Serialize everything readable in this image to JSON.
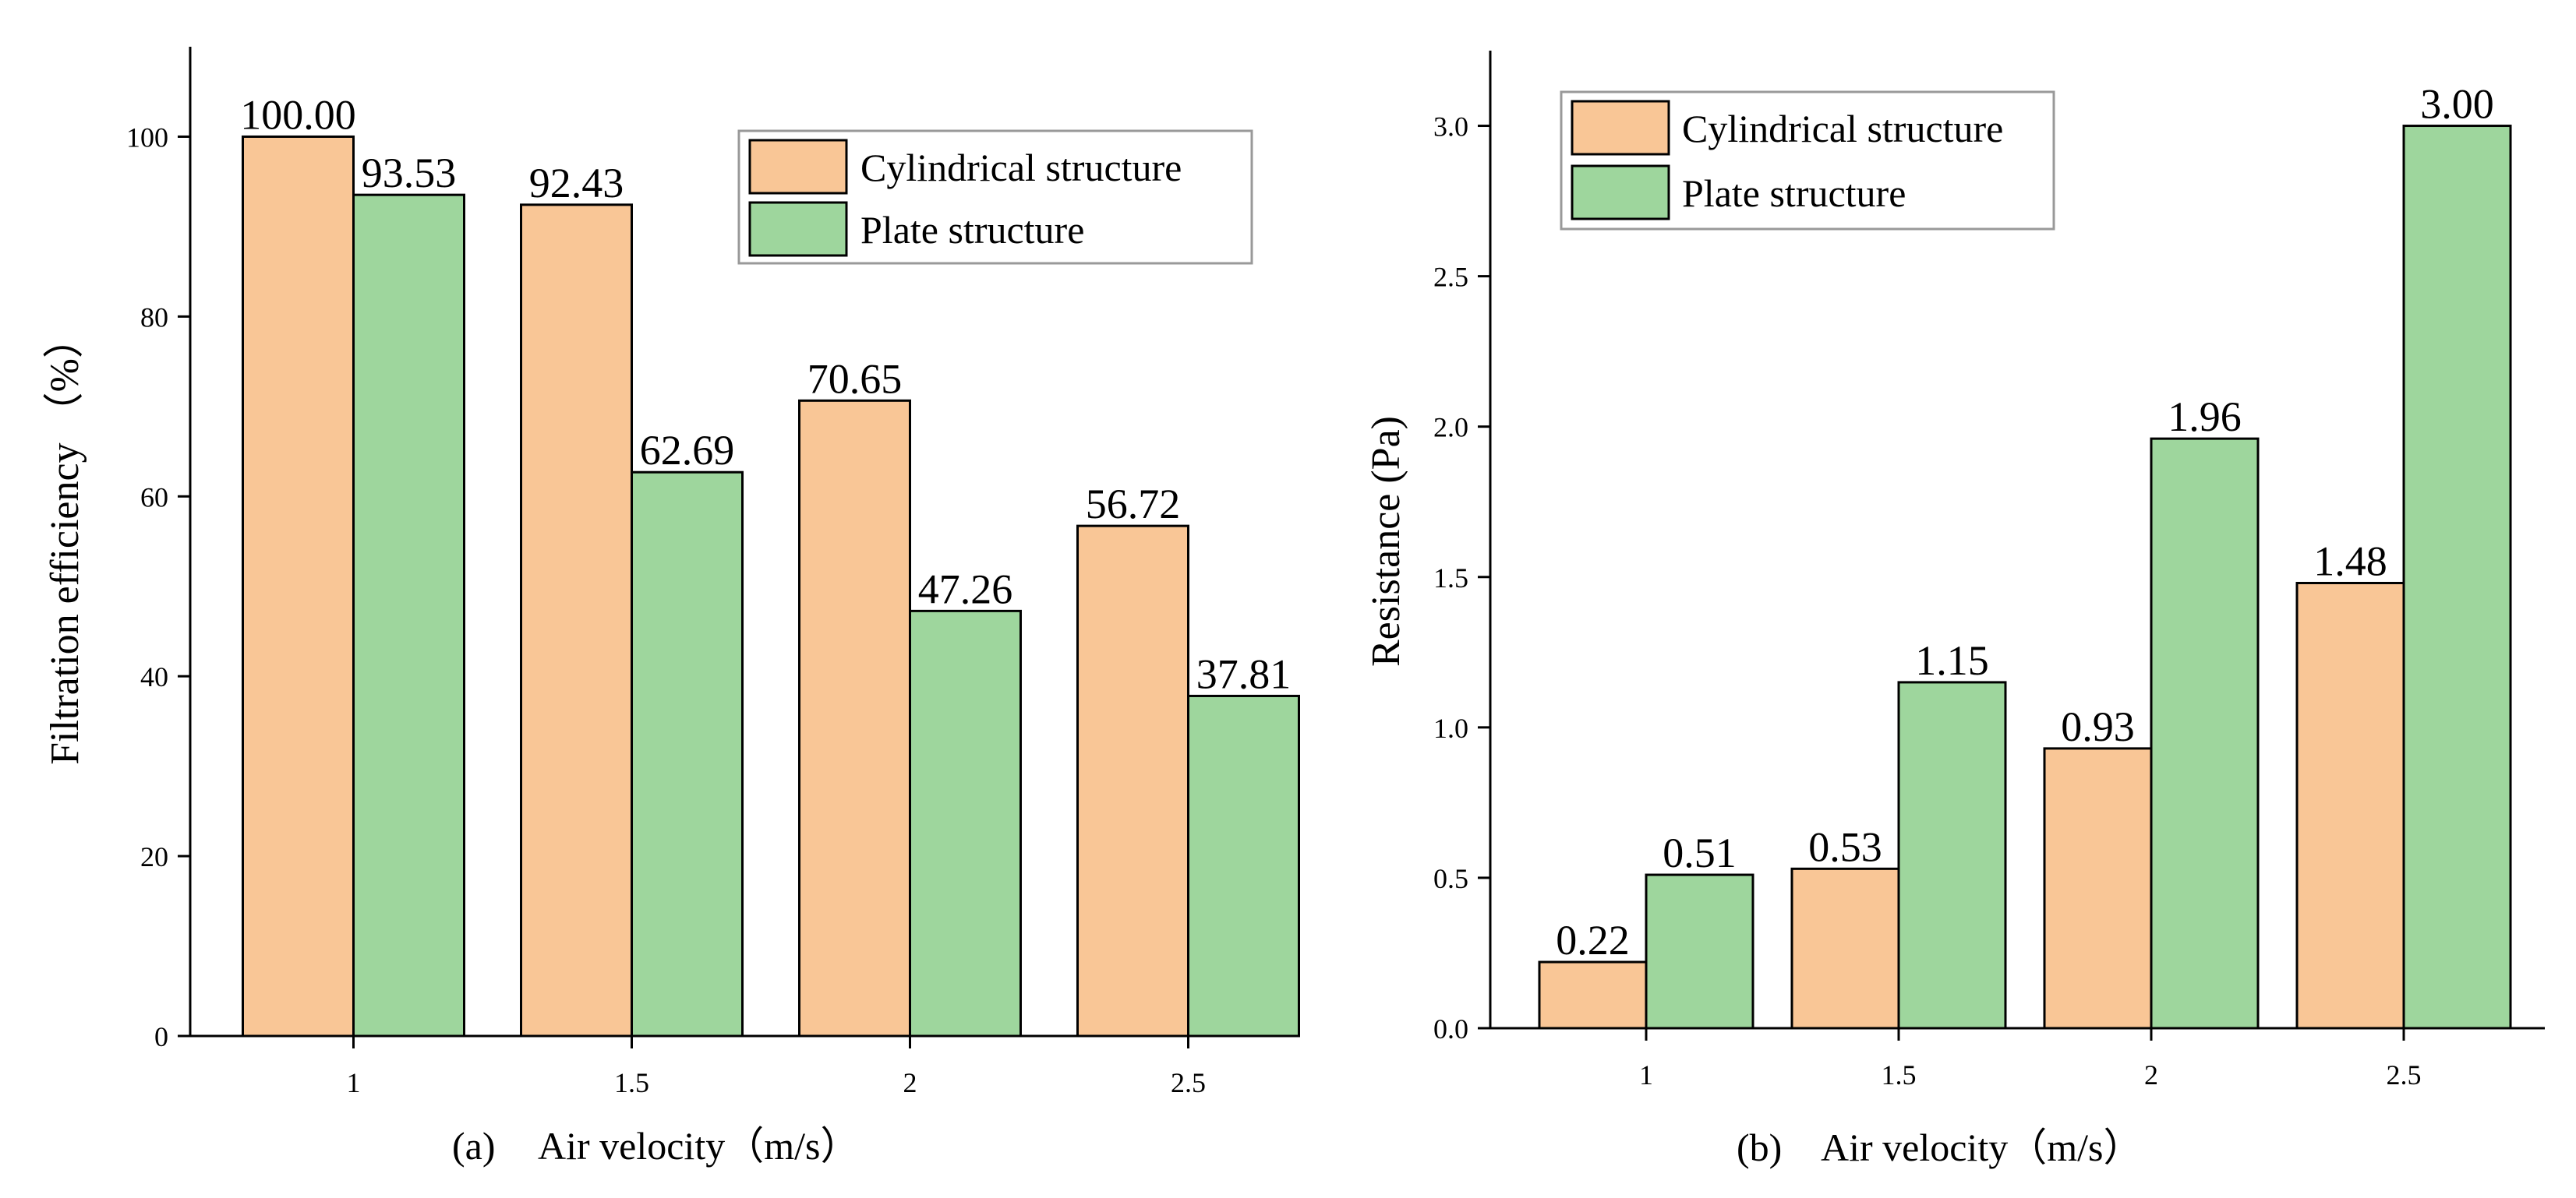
{
  "colors": {
    "cylindrical": "#F9C696",
    "plate": "#9ED69D"
  },
  "chart_data": [
    {
      "type": "bar",
      "caption": "(a)",
      "xlabel": "Air velocity（m/s）",
      "ylabel": "Filtration efficiency （%）",
      "categories": [
        "1",
        "1.5",
        "2",
        "2.5"
      ],
      "ylim": [
        0,
        110
      ],
      "yticks": [
        "0",
        "20",
        "40",
        "60",
        "80",
        "100"
      ],
      "legend_position": "top-right",
      "series": [
        {
          "name": "Cylindrical structure",
          "values": [
            100.0,
            92.43,
            70.65,
            56.72
          ],
          "labels": [
            "100.00",
            "92.43",
            "70.65",
            "56.72"
          ]
        },
        {
          "name": "Plate structure",
          "values": [
            93.53,
            62.69,
            47.26,
            37.81
          ],
          "labels": [
            "93.53",
            "62.69",
            "47.26",
            "37.81"
          ]
        }
      ]
    },
    {
      "type": "bar",
      "caption": "(b)",
      "xlabel": "Air velocity（m/s）",
      "ylabel": "Resistance (Pa)",
      "categories": [
        "1",
        "1.5",
        "2",
        "2.5"
      ],
      "ylim": [
        0,
        3.25
      ],
      "yticks": [
        "0.0",
        "0.5",
        "1.0",
        "1.5",
        "2.0",
        "2.5",
        "3.0"
      ],
      "legend_position": "top-left",
      "series": [
        {
          "name": "Cylindrical structure",
          "values": [
            0.22,
            0.53,
            0.93,
            1.48
          ],
          "labels": [
            "0.22",
            "0.53",
            "0.93",
            "1.48"
          ]
        },
        {
          "name": "Plate structure",
          "values": [
            0.51,
            1.15,
            1.96,
            3.0
          ],
          "labels": [
            "0.51",
            "1.15",
            "1.96",
            "3.00"
          ]
        }
      ]
    }
  ]
}
